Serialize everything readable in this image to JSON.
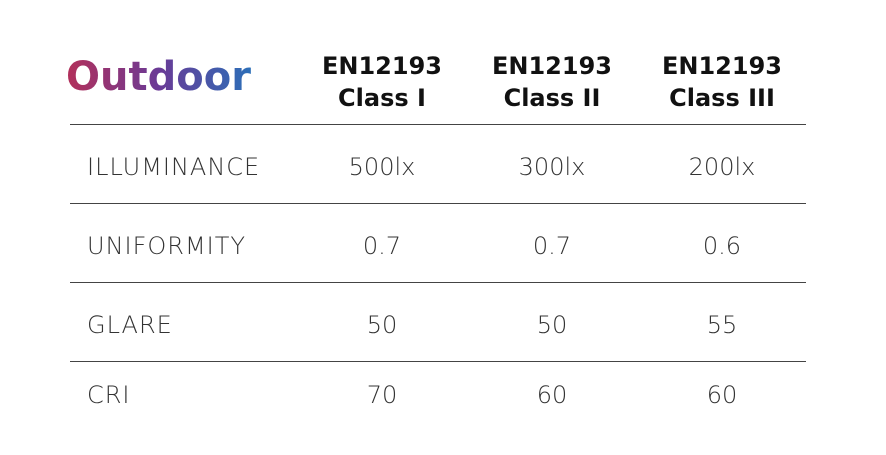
{
  "title": "Outdoor",
  "table": {
    "headers": [
      [
        "EN12193",
        "Class I"
      ],
      [
        "EN12193",
        "Class II"
      ],
      [
        "EN12193",
        "Class III"
      ]
    ],
    "rows": [
      [
        "ILLUMINANCE",
        "500lx",
        "300lx",
        "200lx"
      ],
      [
        "UNIFORMITY",
        "0.7",
        "0.7",
        "0.6"
      ],
      [
        "GLARE",
        "50",
        "50",
        "55"
      ],
      [
        "CRI",
        "70",
        "60",
        "60"
      ]
    ]
  }
}
